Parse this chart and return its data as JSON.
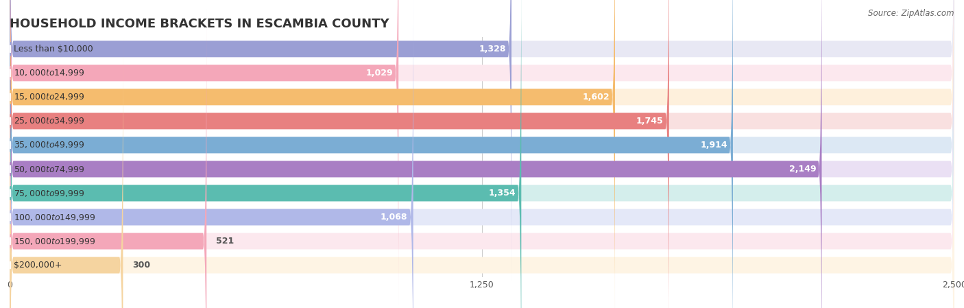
{
  "title": "HOUSEHOLD INCOME BRACKETS IN ESCAMBIA COUNTY",
  "source": "Source: ZipAtlas.com",
  "categories": [
    "Less than $10,000",
    "$10,000 to $14,999",
    "$15,000 to $24,999",
    "$25,000 to $34,999",
    "$35,000 to $49,999",
    "$50,000 to $74,999",
    "$75,000 to $99,999",
    "$100,000 to $149,999",
    "$150,000 to $199,999",
    "$200,000+"
  ],
  "values": [
    1328,
    1029,
    1602,
    1745,
    1914,
    2149,
    1354,
    1068,
    521,
    300
  ],
  "bar_colors": [
    "#9B9FD4",
    "#F4A7B9",
    "#F5BC6E",
    "#E88080",
    "#7BADD4",
    "#A97EC4",
    "#5BBCB0",
    "#B0B8E8",
    "#F4A7B9",
    "#F5D4A0"
  ],
  "bar_bg_colors": [
    "#E8E8F4",
    "#FCE8EE",
    "#FEF0DC",
    "#F9E0E0",
    "#DCE8F4",
    "#EAE0F4",
    "#D4EEEC",
    "#E4E8F8",
    "#FCE8EE",
    "#FEF4E4"
  ],
  "xlim": [
    0,
    2500
  ],
  "xticks": [
    0,
    1250,
    2500
  ],
  "title_fontsize": 13,
  "label_fontsize": 9,
  "value_fontsize": 9,
  "background_color": "#ffffff",
  "value_label_inside_color": "white",
  "value_label_outside_color": "#555555",
  "inside_threshold": 600
}
